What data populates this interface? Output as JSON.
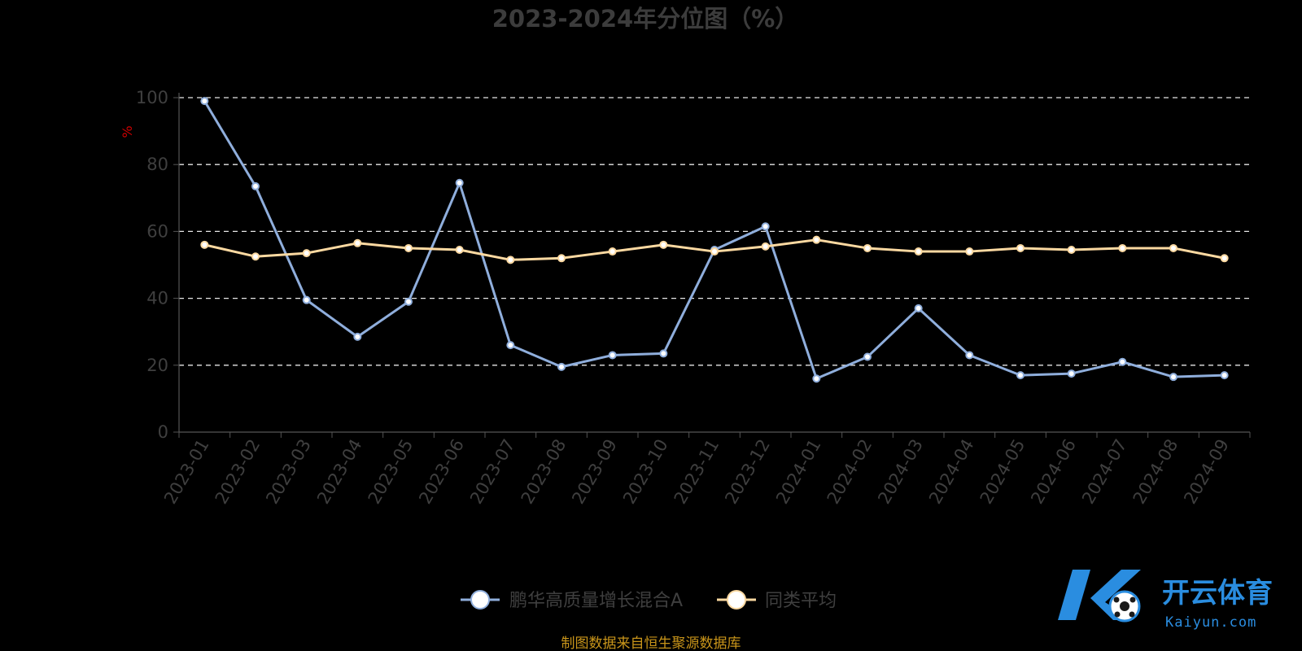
{
  "chart_data": {
    "type": "line",
    "title": "2023-2024年分位图（%）",
    "ylabel": "%",
    "xlabel": "",
    "ylim": [
      0,
      100
    ],
    "yticks": [
      0,
      20,
      40,
      60,
      80,
      100
    ],
    "grid": true,
    "legend_position": "bottom",
    "categories": [
      "2023-01",
      "2023-02",
      "2023-03",
      "2023-04",
      "2023-05",
      "2023-06",
      "2023-07",
      "2023-08",
      "2023-09",
      "2023-10",
      "2023-11",
      "2023-12",
      "2024-01",
      "2024-02",
      "2024-03",
      "2024-04",
      "2024-05",
      "2024-06",
      "2024-07",
      "2024-08",
      "2024-09"
    ],
    "series": [
      {
        "name": "鹏华高质量增长混合A",
        "color": "#8faedc",
        "values": [
          99,
          73.5,
          39.5,
          28.5,
          39,
          74.5,
          26,
          19.5,
          23,
          23.5,
          54.5,
          61.5,
          16,
          22.5,
          37,
          23,
          17,
          17.5,
          21,
          16.5,
          17
        ]
      },
      {
        "name": "同类平均",
        "color": "#fcd9a1",
        "values": [
          56,
          52.5,
          53.5,
          56.5,
          55,
          54.5,
          51.5,
          52,
          54,
          56,
          54,
          55.5,
          57.5,
          55,
          54,
          54,
          55,
          54.5,
          55,
          55,
          52
        ]
      }
    ]
  },
  "source": "制图数据来自恒生聚源数据库",
  "watermark": {
    "text": "开云体育",
    "sub": "Kaiyun.com"
  }
}
